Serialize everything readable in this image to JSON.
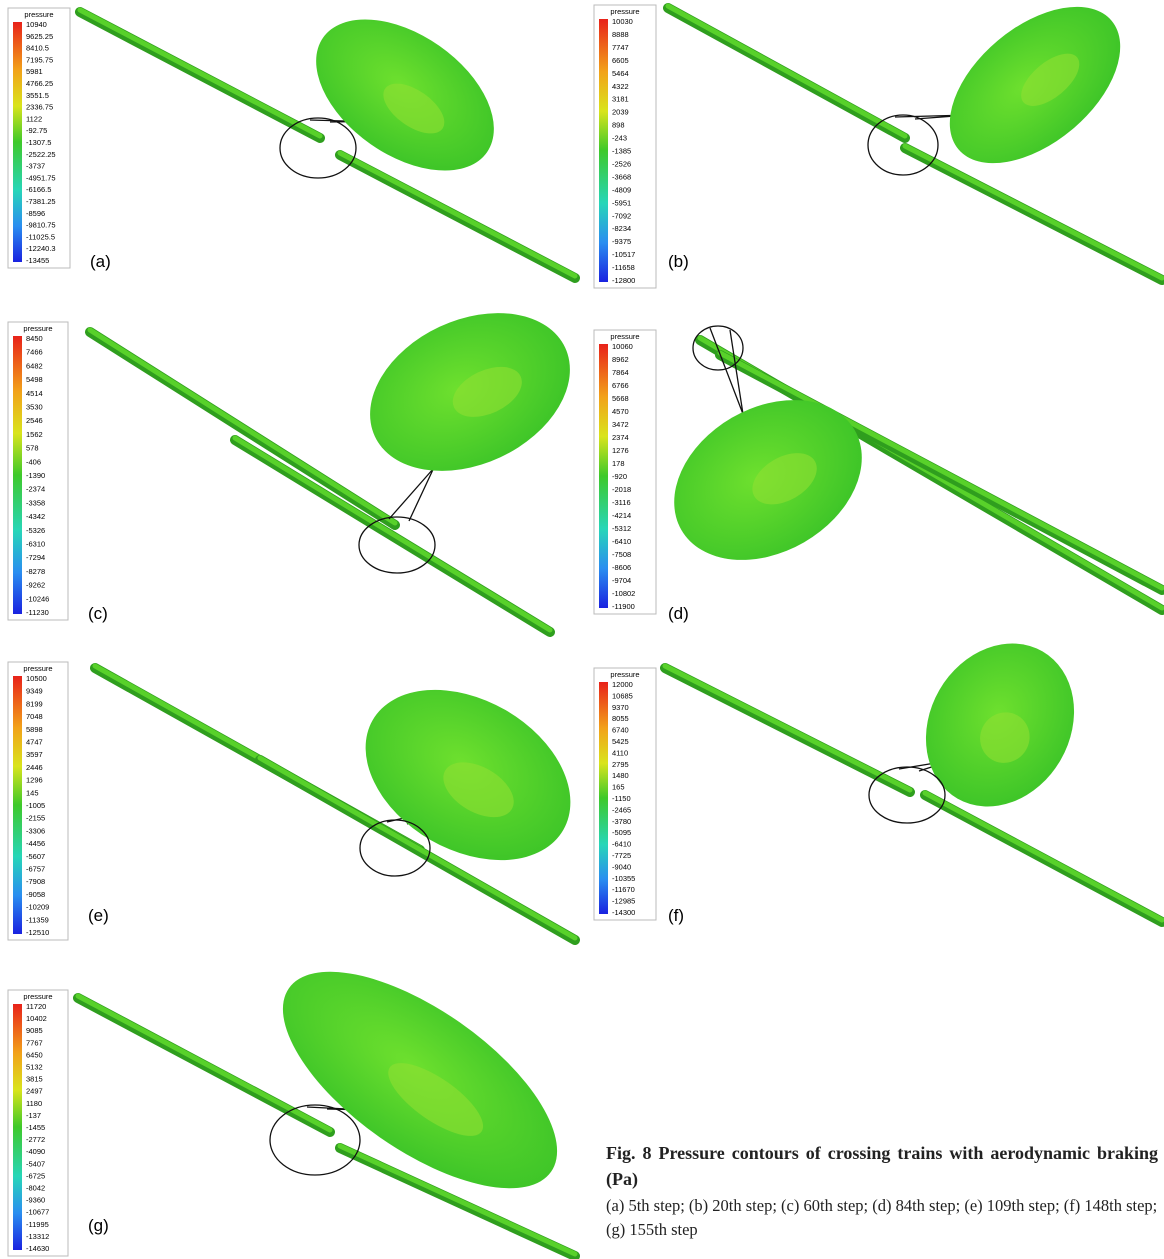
{
  "panels": [
    {
      "label": "(a)",
      "legend_title": "pressure",
      "legend_values": [
        "10940",
        "9625.25",
        "8410.5",
        "7195.75",
        "5981",
        "4766.25",
        "3551.5",
        "2336.75",
        "1122",
        "-92.75",
        "-1307.5",
        "-2522.25",
        "-3737",
        "-4951.75",
        "-6166.5",
        "-7381.25",
        "-8596",
        "-9810.75",
        "-11025.5",
        "-12240.3",
        "-13455"
      ]
    },
    {
      "label": "(b)",
      "legend_title": "pressure",
      "legend_values": [
        "10030",
        "8888",
        "7747",
        "6605",
        "5464",
        "4322",
        "3181",
        "2039",
        "898",
        "-243",
        "-1385",
        "-2526",
        "-3668",
        "-4809",
        "-5951",
        "-7092",
        "-8234",
        "-9375",
        "-10517",
        "-11658",
        "-12800"
      ]
    },
    {
      "label": "(c)",
      "legend_title": "pressure",
      "legend_values": [
        "8450",
        "7466",
        "6482",
        "5498",
        "4514",
        "3530",
        "2546",
        "1562",
        "578",
        "-406",
        "-1390",
        "-2374",
        "-3358",
        "-4342",
        "-5326",
        "-6310",
        "-7294",
        "-8278",
        "-9262",
        "-10246",
        "-11230"
      ]
    },
    {
      "label": "(d)",
      "legend_title": "pressure",
      "legend_values": [
        "10060",
        "8962",
        "7864",
        "6766",
        "5668",
        "4570",
        "3472",
        "2374",
        "1276",
        "178",
        "-920",
        "-2018",
        "-3116",
        "-4214",
        "-5312",
        "-6410",
        "-7508",
        "-8606",
        "-9704",
        "-10802",
        "-11900"
      ]
    },
    {
      "label": "(e)",
      "legend_title": "pressure",
      "legend_values": [
        "10500",
        "9349",
        "8199",
        "7048",
        "5898",
        "4747",
        "3597",
        "2446",
        "1296",
        "145",
        "-1005",
        "-2155",
        "-3306",
        "-4456",
        "-5607",
        "-6757",
        "-7908",
        "-9058",
        "-10209",
        "-11359",
        "-12510"
      ]
    },
    {
      "label": "(f)",
      "legend_title": "pressure",
      "legend_values": [
        "12000",
        "10685",
        "9370",
        "8055",
        "6740",
        "5425",
        "4110",
        "2795",
        "1480",
        "165",
        "-1150",
        "-2465",
        "-3780",
        "-5095",
        "-6410",
        "-7725",
        "-9040",
        "-10355",
        "-11670",
        "-12985",
        "-14300"
      ]
    },
    {
      "label": "(g)",
      "legend_title": "pressure",
      "legend_values": [
        "11720",
        "10402",
        "9085",
        "7767",
        "6450",
        "5132",
        "3815",
        "2497",
        "1180",
        "-137",
        "-1455",
        "-2772",
        "-4090",
        "-5407",
        "-6725",
        "-8042",
        "-9360",
        "-10677",
        "-11995",
        "-13312",
        "-14630"
      ]
    }
  ],
  "caption": {
    "title": "Fig. 8  Pressure contours of crossing trains with aerodynamic braking (Pa)",
    "body": "(a) 5th step; (b) 20th step; (c) 60th step; (d) 84th step; (e) 109th step; (f) 148th step; (g) 155th step"
  }
}
